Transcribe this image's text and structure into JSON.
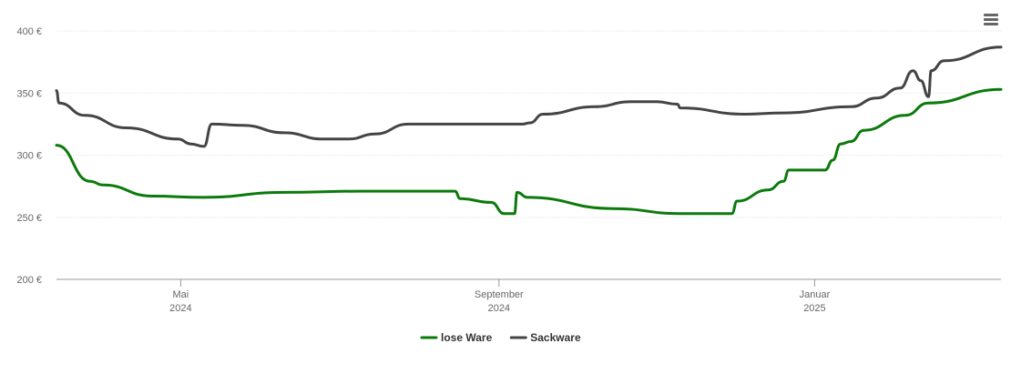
{
  "chart_data": {
    "type": "line",
    "title": "",
    "xlabel": "",
    "ylabel": "",
    "ylim": [
      200,
      400
    ],
    "xlim": [
      "2024-03-14",
      "2025-03-14"
    ],
    "y_ticks": [
      {
        "value": 200,
        "label": "200 €"
      },
      {
        "value": 250,
        "label": "250 €"
      },
      {
        "value": 300,
        "label": "300 €"
      },
      {
        "value": 350,
        "label": "350 €"
      },
      {
        "value": 400,
        "label": "400 €"
      }
    ],
    "x_ticks": [
      {
        "date": "2024-05-01",
        "month": "Mai",
        "year": "2024"
      },
      {
        "date": "2024-09-01",
        "month": "September",
        "year": "2024"
      },
      {
        "date": "2025-01-01",
        "month": "Januar",
        "year": "2025"
      }
    ],
    "grid": true,
    "legend_position": "bottom-center",
    "series": [
      {
        "name": "lose Ware",
        "color": "#0b7a0b",
        "points": [
          [
            "2024-03-14",
            308
          ],
          [
            "2024-03-27",
            279
          ],
          [
            "2024-04-01",
            276
          ],
          [
            "2024-04-20",
            267
          ],
          [
            "2024-05-10",
            266
          ],
          [
            "2024-06-10",
            270
          ],
          [
            "2024-07-10",
            271
          ],
          [
            "2024-08-15",
            271
          ],
          [
            "2024-08-17",
            265
          ],
          [
            "2024-08-29",
            262
          ],
          [
            "2024-09-03",
            253
          ],
          [
            "2024-09-07",
            253
          ],
          [
            "2024-09-08",
            270
          ],
          [
            "2024-09-12",
            266
          ],
          [
            "2024-10-15",
            257
          ],
          [
            "2024-11-10",
            253
          ],
          [
            "2024-11-30",
            253
          ],
          [
            "2024-12-02",
            263
          ],
          [
            "2024-12-14",
            272
          ],
          [
            "2024-12-20",
            279
          ],
          [
            "2024-12-22",
            288
          ],
          [
            "2025-01-05",
            288
          ],
          [
            "2025-01-08",
            296
          ],
          [
            "2025-01-11",
            309
          ],
          [
            "2025-01-15",
            311
          ],
          [
            "2025-01-20",
            320
          ],
          [
            "2025-02-05",
            332
          ],
          [
            "2025-02-14",
            342
          ],
          [
            "2025-03-14",
            353
          ]
        ]
      },
      {
        "name": "Sackware",
        "color": "#444444",
        "points": [
          [
            "2024-03-14",
            352
          ],
          [
            "2024-03-15",
            342
          ],
          [
            "2024-03-25",
            332
          ],
          [
            "2024-04-10",
            322
          ],
          [
            "2024-04-30",
            313
          ],
          [
            "2024-05-05",
            309
          ],
          [
            "2024-05-10",
            307
          ],
          [
            "2024-05-13",
            325
          ],
          [
            "2024-05-25",
            324
          ],
          [
            "2024-06-10",
            318
          ],
          [
            "2024-06-25",
            313
          ],
          [
            "2024-07-05",
            313
          ],
          [
            "2024-07-15",
            317
          ],
          [
            "2024-07-28",
            325
          ],
          [
            "2024-08-20",
            325
          ],
          [
            "2024-09-10",
            325
          ],
          [
            "2024-09-13",
            326
          ],
          [
            "2024-09-18",
            333
          ],
          [
            "2024-10-08",
            339
          ],
          [
            "2024-10-22",
            343
          ],
          [
            "2024-11-01",
            343
          ],
          [
            "2024-11-09",
            341
          ],
          [
            "2024-11-10",
            338
          ],
          [
            "2024-12-05",
            333
          ],
          [
            "2024-12-20",
            334
          ],
          [
            "2025-01-15",
            339
          ],
          [
            "2025-01-25",
            346
          ],
          [
            "2025-02-03",
            354
          ],
          [
            "2025-02-08",
            368
          ],
          [
            "2025-02-11",
            360
          ],
          [
            "2025-02-14",
            347
          ],
          [
            "2025-02-15",
            368
          ],
          [
            "2025-02-20",
            376
          ],
          [
            "2025-03-14",
            387
          ]
        ]
      }
    ]
  },
  "toolbar": {
    "menu_icon": "hamburger-menu-icon"
  }
}
